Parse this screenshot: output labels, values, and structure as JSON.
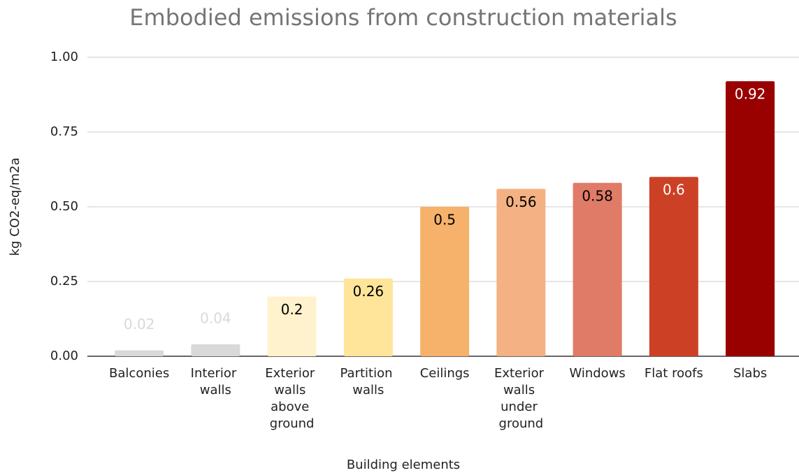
{
  "chart_data": {
    "type": "bar",
    "title": "Embodied emissions from construction materials",
    "x_label": "Building elements",
    "y_label": "kg CO2-eq/m2a",
    "categories": [
      "Balconies",
      "Interior walls",
      "Exterior walls above ground",
      "Partition walls",
      "Ceilings",
      "Exterior walls under ground",
      "Windows",
      "Flat roofs",
      "Slabs"
    ],
    "values": [
      0.02,
      0.04,
      0.2,
      0.26,
      0.5,
      0.56,
      0.58,
      0.6,
      0.92
    ],
    "colors": [
      "#d9d9d9",
      "#d9d9d9",
      "#fff2cc",
      "#ffe599",
      "#f6b26b",
      "#f4b183",
      "#e07b67",
      "#cc4125",
      "#990000"
    ],
    "label_colors": [
      "#d9d9d9",
      "#d9d9d9",
      "#000000",
      "#000000",
      "#000000",
      "#000000",
      "#000000",
      "#ffffff",
      "#ffffff"
    ],
    "ylim": [
      0,
      1
    ],
    "yticks": [
      {
        "value": 0,
        "label": "0.00"
      },
      {
        "value": 0.25,
        "label": "0.25"
      },
      {
        "value": 0.5,
        "label": "0.50"
      },
      {
        "value": 0.75,
        "label": "0.75"
      },
      {
        "value": 1,
        "label": "1.00"
      }
    ],
    "grid": true
  }
}
